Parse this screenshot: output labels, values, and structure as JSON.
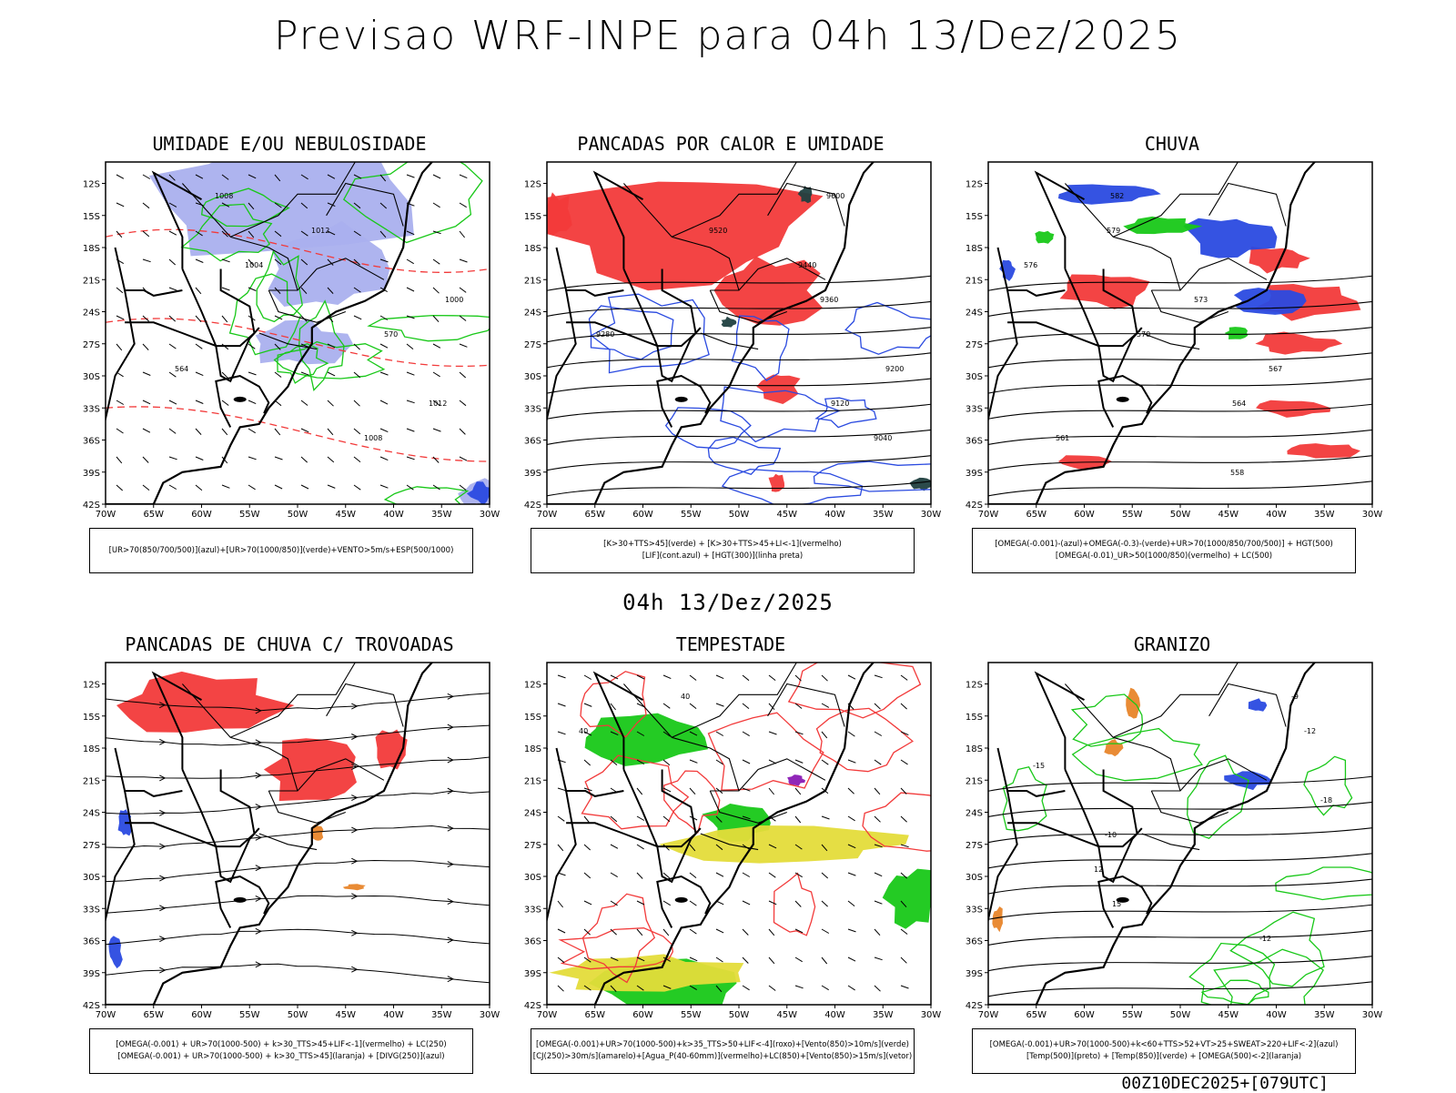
{
  "title": "Previsao WRF-INPE  para 04h 13/Dez/2025",
  "mid_title": "04h 13/Dez/2025",
  "footer": "00Z10DEC2025+[079UTC]",
  "lat_ticks": [
    "12S",
    "15S",
    "18S",
    "21S",
    "24S",
    "27S",
    "30S",
    "33S",
    "36S",
    "39S",
    "42S"
  ],
  "lon_ticks": [
    "70W",
    "65W",
    "60W",
    "55W",
    "50W",
    "45W",
    "40W",
    "35W",
    "30W"
  ],
  "colors": {
    "blue": "#2a4ae0",
    "green": "#18c818",
    "red": "#f23a3a",
    "lavender": "#aab0ee",
    "orange": "#e8852a",
    "yellow": "#e4dc3a",
    "purple": "#8a1ab4",
    "teal": "#204040"
  },
  "panels": [
    {
      "id": "umidade",
      "title": "UMIDADE E/OU NEBULOSIDADE",
      "legend": [
        "[UR>70(850/700/500)](azul)+[UR>70(1000/850)](verde)+VENTO>5m/s+ESP(500/1000)"
      ],
      "contour_labels": [
        "1008",
        "1012",
        "1004",
        "1000",
        "570",
        "564",
        "1012",
        "1008"
      ]
    },
    {
      "id": "pancadas",
      "title": "PANCADAS POR CALOR E UMIDADE",
      "legend": [
        "[K>30+TTS>45](verde) + [K>30+TTS>45+LI<-1](vermelho)",
        "[LIF](cont.azul) + [HGT(300)](linha preta)"
      ],
      "contour_labels": [
        "9600",
        "9520",
        "9440",
        "9360",
        "9280",
        "9200",
        "9120",
        "9040"
      ]
    },
    {
      "id": "chuva",
      "title": "CHUVA",
      "legend": [
        "[OMEGA(-0.001)-(azul)+OMEGA(-0.3)-(verde)+UR>70(1000/850/700/500)] + HGT(500)",
        "[OMEGA(-0.01)_UR>50(1000/850)(vermelho) + LC(500)"
      ],
      "contour_labels": [
        "582",
        "579",
        "576",
        "573",
        "570",
        "567",
        "564",
        "561",
        "558"
      ]
    },
    {
      "id": "trovoadas",
      "title": "PANCADAS DE CHUVA C/ TROVOADAS",
      "legend": [
        "[OMEGA(-0.001) + UR>70(1000-500) + k>30_TTS>45+LIF<-1](vermelho) + LC(250)",
        "[OMEGA(-0.001) + UR>70(1000-500) + k>30_TTS>45](laranja) + [DIVG(250)](azul)"
      ],
      "contour_labels": []
    },
    {
      "id": "tempestade",
      "title": "TEMPESTADE",
      "legend": [
        "[OMEGA(-0.001)+UR>70(1000-500)+k>35_TTS>50+LIF<-4](roxo)+[Vento(850)>10m/s](verde)",
        "[CJ(250)>30m/s](amarelo)+[Agua_P(40-60mm)](vermelho)+LC(850)+[Vento(850)>15m/s](vetor)"
      ],
      "contour_labels": [
        "40",
        "40"
      ]
    },
    {
      "id": "granizo",
      "title": "GRANIZO",
      "legend": [
        "[OMEGA(-0.001)+UR>70(1000-500)+k<60+TTS>52+VT>25+SWEAT>220+LIF<-2](azul)",
        "[Temp(500)](preto) + [Temp(850)](verde) + [OMEGA(500)<-2](laranja)"
      ],
      "contour_labels": [
        "-9",
        "-12",
        "-15",
        "-18",
        "-10",
        "12",
        "15",
        "-12"
      ]
    }
  ]
}
